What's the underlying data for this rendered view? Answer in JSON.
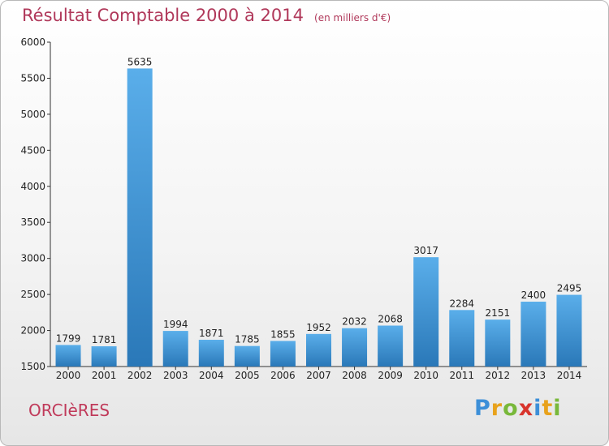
{
  "chart_data": {
    "type": "bar",
    "title": "Résultat Comptable 2000 à 2014",
    "unit_note": "(en milliers d'€)",
    "categories": [
      "2000",
      "2001",
      "2002",
      "2003",
      "2004",
      "2005",
      "2006",
      "2007",
      "2008",
      "2009",
      "2010",
      "2011",
      "2012",
      "2013",
      "2014"
    ],
    "values": [
      1799,
      1781,
      5635,
      1994,
      1871,
      1785,
      1855,
      1952,
      2032,
      2068,
      3017,
      2284,
      2151,
      2400,
      2495
    ],
    "ylim": [
      1500,
      6000
    ],
    "yticks": [
      1500,
      2000,
      2500,
      3000,
      3500,
      4000,
      4500,
      5000,
      5500,
      6000
    ],
    "xlabel": "",
    "ylabel": "",
    "grid": false,
    "bar_color_top": "#5aaeea",
    "bar_color_bottom": "#2a78b8"
  },
  "commune": "ORCIèRES",
  "logo": {
    "letters": [
      {
        "ch": "P",
        "color": "#3c8fd8"
      },
      {
        "ch": "r",
        "color": "#e8a21c"
      },
      {
        "ch": "o",
        "color": "#78b83a"
      },
      {
        "ch": "x",
        "color": "#d8342c"
      },
      {
        "ch": "i",
        "color": "#3c8fd8"
      },
      {
        "ch": "t",
        "color": "#e8a21c"
      },
      {
        "ch": "i",
        "color": "#78b83a"
      }
    ]
  }
}
